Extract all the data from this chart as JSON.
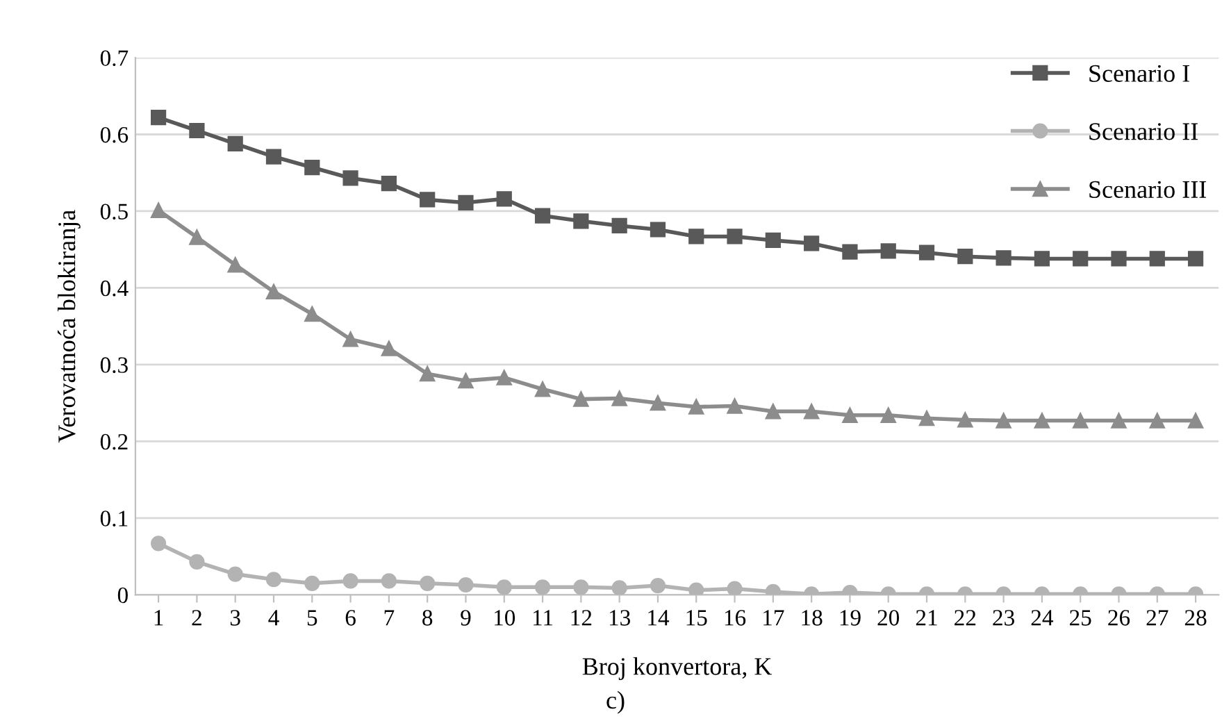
{
  "chart_data": {
    "type": "line",
    "xlabel": "Broj konvertora, K",
    "ylabel": "Verovatnoća blokiranja",
    "categories": [
      "1",
      "2",
      "3",
      "4",
      "5",
      "6",
      "7",
      "8",
      "9",
      "10",
      "11",
      "12",
      "13",
      "14",
      "15",
      "16",
      "17",
      "18",
      "19",
      "20",
      "21",
      "22",
      "23",
      "24",
      "25",
      "26",
      "27",
      "28"
    ],
    "series": [
      {
        "name": "Scenario I",
        "color": "#595959",
        "marker": "square",
        "values": [
          0.622,
          0.605,
          0.588,
          0.571,
          0.557,
          0.543,
          0.536,
          0.515,
          0.511,
          0.516,
          0.494,
          0.487,
          0.481,
          0.476,
          0.467,
          0.467,
          0.462,
          0.458,
          0.447,
          0.448,
          0.446,
          0.441,
          0.439,
          0.438,
          0.438,
          0.438,
          0.438,
          0.438
        ]
      },
      {
        "name": "Scenario II",
        "color": "#b3b3b3",
        "marker": "circle",
        "values": [
          0.067,
          0.043,
          0.027,
          0.02,
          0.015,
          0.018,
          0.018,
          0.015,
          0.013,
          0.01,
          0.01,
          0.01,
          0.009,
          0.012,
          0.006,
          0.008,
          0.004,
          0.001,
          0.003,
          0.001,
          0.001,
          0.001,
          0.001,
          0.001,
          0.001,
          0.001,
          0.001,
          0.001
        ]
      },
      {
        "name": "Scenario III",
        "color": "#8c8c8c",
        "marker": "triangle",
        "values": [
          0.501,
          0.466,
          0.43,
          0.395,
          0.366,
          0.333,
          0.321,
          0.288,
          0.279,
          0.283,
          0.268,
          0.255,
          0.256,
          0.25,
          0.245,
          0.246,
          0.239,
          0.239,
          0.234,
          0.234,
          0.23,
          0.228,
          0.227,
          0.227,
          0.227,
          0.227,
          0.227,
          0.227
        ]
      }
    ],
    "ylim": [
      0,
      0.7
    ],
    "yticks": [
      0,
      0.1,
      0.2,
      0.3,
      0.4,
      0.5,
      0.6,
      0.7
    ],
    "grid": "y",
    "legend": "top right",
    "annotations": [
      "c)"
    ]
  }
}
